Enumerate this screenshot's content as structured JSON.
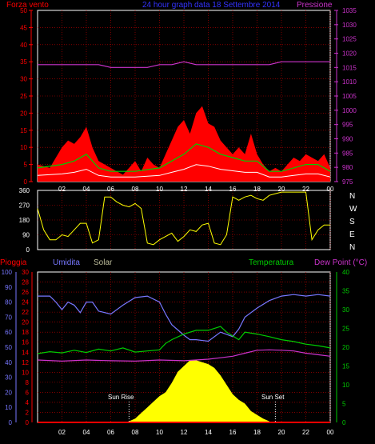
{
  "chart_data": [
    {
      "type": "line",
      "title": "24 hour graph data  18 Settembre 2014",
      "left_label": "Forza vento",
      "right_label": "Pressione",
      "x_ticks": [
        "02",
        "04",
        "06",
        "08",
        "10",
        "12",
        "14",
        "16",
        "18",
        "20",
        "22",
        "00"
      ],
      "left_ticks": [
        "0",
        "5",
        "10",
        "15",
        "20",
        "25",
        "30",
        "35",
        "40",
        "45",
        "50"
      ],
      "right_ticks": [
        "975",
        "980",
        "985",
        "990",
        "995",
        "1000",
        "1005",
        "1010",
        "1015",
        "1020",
        "1025",
        "1030",
        "1035"
      ],
      "ylim_left": [
        0,
        50
      ],
      "ylim_right": [
        975,
        1035
      ],
      "grid": true,
      "colors": {
        "gust": "#ff0000",
        "wind": "#ffff00",
        "avg": "#00cc00",
        "speed": "#ffffff",
        "pressure": "#cc33cc",
        "grid": "#cc0000"
      },
      "series": [
        {
          "id": "pressure",
          "axis": "right",
          "x": [
            0,
            2,
            4,
            5,
            6,
            7,
            8,
            9,
            10,
            11,
            12,
            13,
            14,
            15,
            16,
            17,
            18,
            19,
            20,
            21,
            22,
            23,
            24
          ],
          "values": [
            1016,
            1016,
            1016,
            1016,
            1015,
            1015,
            1015,
            1015,
            1016,
            1016,
            1017,
            1016,
            1016,
            1016,
            1016,
            1016,
            1016,
            1016,
            1017,
            1017,
            1017,
            1017,
            1017
          ]
        },
        {
          "id": "gust",
          "axis": "left",
          "x": [
            0,
            1,
            1.5,
            2,
            2.5,
            3,
            3.5,
            4,
            4.5,
            5,
            5.5,
            6,
            6.5,
            7,
            7.5,
            8,
            8.5,
            9,
            9.5,
            10,
            10.5,
            11,
            11.5,
            12,
            12.5,
            13,
            13.5,
            14,
            14.5,
            15,
            15.5,
            16,
            16.5,
            17,
            17.5,
            18,
            18.5,
            19,
            19.5,
            20,
            20.5,
            21,
            21.5,
            22,
            22.5,
            23,
            23.5,
            24
          ],
          "values": [
            5,
            4,
            7,
            10,
            12,
            11,
            13,
            16,
            10,
            6,
            5,
            4,
            3,
            2,
            4,
            6,
            3,
            7,
            5,
            4,
            8,
            12,
            16,
            18,
            14,
            20,
            22,
            17,
            16,
            12,
            10,
            8,
            10,
            8,
            14,
            8,
            5,
            3,
            4,
            3,
            5,
            7,
            6,
            8,
            7,
            6,
            8,
            4
          ]
        },
        {
          "id": "avg",
          "axis": "left",
          "x": [
            0,
            2,
            3,
            4,
            5,
            6,
            8,
            10,
            11,
            12,
            13,
            14,
            15,
            16,
            17,
            18,
            19,
            20,
            21,
            22,
            23,
            24
          ],
          "values": [
            4,
            5,
            6,
            8,
            4,
            3,
            3,
            4,
            6,
            8,
            11,
            10,
            8,
            7,
            6,
            6,
            3,
            3,
            4,
            5,
            5,
            3
          ]
        },
        {
          "id": "wind_dir",
          "axis": "dir",
          "x": [
            0,
            0.5,
            1,
            1.5,
            2,
            2.5,
            3,
            3.5,
            4,
            4.5,
            5,
            5.5,
            6,
            6.5,
            7,
            7.5,
            8,
            8.5,
            9,
            9.5,
            10,
            10.5,
            11,
            11.5,
            12,
            12.5,
            13,
            13.5,
            14,
            14.5,
            15,
            15.5,
            16,
            16.5,
            17,
            17.5,
            18,
            18.5,
            19,
            19.5,
            20,
            20.5,
            21,
            21.5,
            22,
            22.5,
            23,
            23.5,
            24
          ],
          "values": [
            250,
            120,
            60,
            60,
            90,
            80,
            120,
            160,
            160,
            40,
            60,
            320,
            320,
            290,
            270,
            260,
            280,
            250,
            40,
            30,
            60,
            80,
            100,
            50,
            80,
            120,
            110,
            150,
            160,
            40,
            30,
            90,
            320,
            300,
            320,
            330,
            310,
            300,
            330,
            340,
            350,
            350,
            350,
            350,
            350,
            60,
            120,
            150,
            150
          ]
        }
      ]
    },
    {
      "type": "line",
      "dir_ticks": [
        "0",
        "90",
        "180",
        "270",
        "360"
      ],
      "compass": [
        "N",
        "W",
        "S",
        "E",
        "N"
      ],
      "ylim": [
        0,
        360
      ]
    },
    {
      "type": "area",
      "labels": {
        "rain": "Pioggia",
        "humidity": "Umidita",
        "solar": "Solar",
        "temperature": "Temperatura",
        "dewpoint": "Dew Point (°C)",
        "sunrise": "Sun Rise",
        "sunset": "Sun Set"
      },
      "humidity_ticks": [
        "0",
        "10",
        "20",
        "30",
        "40",
        "50",
        "60",
        "70",
        "80",
        "90",
        "100"
      ],
      "rain_ticks": [
        "0",
        "2",
        "4",
        "6",
        "8",
        "10",
        "12",
        "14",
        "16",
        "18",
        "20",
        "22",
        "24",
        "26",
        "28",
        "30"
      ],
      "temp_ticks": [
        "0",
        "5",
        "10",
        "15",
        "20",
        "25",
        "30",
        "35",
        "40"
      ],
      "x_ticks": [
        "02",
        "04",
        "06",
        "08",
        "10",
        "12",
        "14",
        "16",
        "18",
        "20",
        "22",
        "00"
      ],
      "sunrise_hour": 7.5,
      "sunset_hour": 19.5,
      "colors": {
        "humidity": "#7777ff",
        "temperature": "#00cc00",
        "dewpoint": "#cc33cc",
        "solar": "#ffff00",
        "rain": "#ff0000",
        "grid": "#cc0000",
        "temp_axis": "#00cc00"
      },
      "series": [
        {
          "id": "humidity",
          "axis": "humidity",
          "x": [
            0,
            1,
            1.5,
            2,
            2.5,
            3,
            3.5,
            4,
            4.5,
            5,
            6,
            7,
            8,
            9,
            10,
            10.5,
            11,
            12,
            12.5,
            13,
            14,
            15,
            16,
            16.5,
            17,
            18,
            19,
            20,
            21,
            22,
            23,
            24
          ],
          "values": [
            84,
            84,
            80,
            75,
            80,
            78,
            73,
            80,
            80,
            74,
            72,
            78,
            83,
            84,
            80,
            72,
            65,
            58,
            55,
            55,
            54,
            60,
            57,
            62,
            70,
            76,
            81,
            84,
            85,
            84,
            85,
            84
          ]
        },
        {
          "id": "temperature",
          "axis": "temp",
          "x": [
            0,
            1,
            2,
            3,
            4,
            5,
            6,
            7,
            8,
            9,
            10,
            10.5,
            11,
            12,
            13,
            14,
            15,
            15.5,
            16,
            16.5,
            17,
            18,
            19,
            20,
            21,
            22,
            23,
            24
          ],
          "values": [
            18.3,
            18.8,
            18.5,
            19.2,
            18.6,
            19.5,
            19,
            19.8,
            18.7,
            19,
            19.3,
            21,
            22,
            23.5,
            24.5,
            24.5,
            25.5,
            24,
            23,
            22,
            24,
            23.5,
            22.8,
            22,
            21.5,
            20.8,
            20.4,
            19.8
          ]
        },
        {
          "id": "dewpoint",
          "axis": "temp",
          "x": [
            0,
            2,
            4,
            6,
            8,
            10,
            12,
            14,
            15,
            16,
            17,
            18,
            19,
            20,
            21,
            22,
            23,
            24
          ],
          "values": [
            16.6,
            16.3,
            16.6,
            16.4,
            16.3,
            16.6,
            16.4,
            16.8,
            17.2,
            17.6,
            18.4,
            19.2,
            19.3,
            19.2,
            19,
            18.4,
            18,
            17.6
          ]
        },
        {
          "id": "solar",
          "axis": "temp",
          "x": [
            7.5,
            8,
            8.5,
            9,
            9.5,
            10,
            10.5,
            11,
            11.5,
            12,
            12.5,
            13,
            13.5,
            14,
            14.5,
            15,
            15.5,
            16,
            16.5,
            17,
            17.5,
            18,
            18.5,
            19
          ],
          "values": [
            0.3,
            1,
            2.5,
            4,
            5.5,
            7,
            8,
            10.5,
            13.5,
            15,
            16.5,
            16.5,
            16,
            15.5,
            14.5,
            12.5,
            10,
            7.5,
            6,
            5,
            3,
            2,
            1,
            0.3
          ]
        },
        {
          "id": "rain",
          "axis": "rain",
          "x": [
            0,
            24
          ],
          "values": [
            0,
            0
          ]
        }
      ]
    }
  ]
}
